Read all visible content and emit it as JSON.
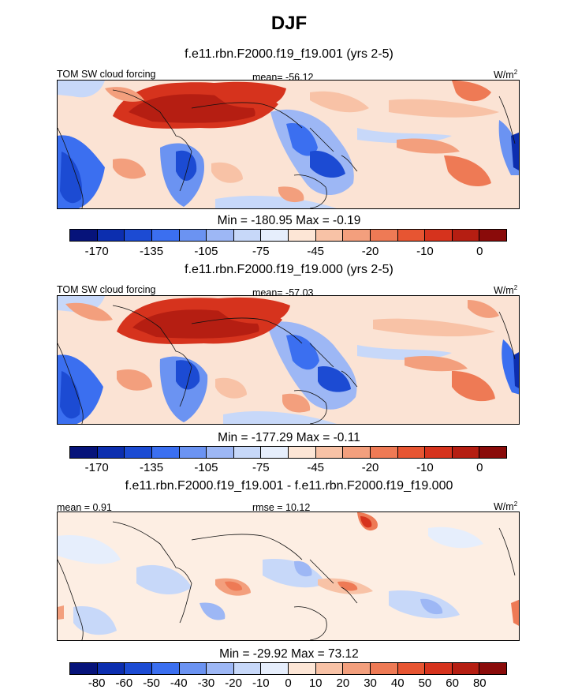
{
  "title": "DJF",
  "panels": [
    {
      "subtitle": "f.e11.rbn.F2000.f19_f19.001 (yrs 2-5)",
      "left_label": "TOM SW cloud forcing",
      "center_label": "mean= -56.12",
      "unit": "W/m",
      "unit_exp": "2",
      "minmax": "Min = -180.95 Max =  -0.19",
      "colorbar": {
        "colors": [
          "#06137a",
          "#0c2eaf",
          "#1c4bd3",
          "#3b6ff0",
          "#6b93f2",
          "#9db7f5",
          "#c7d8f9",
          "#e6eefc",
          "#fde6d6",
          "#f8c2a6",
          "#f39f7d",
          "#ee7a55",
          "#e75532",
          "#d6331d",
          "#b51e12",
          "#8a0b0a"
        ],
        "ticks": [
          "-170",
          "-135",
          "-105",
          "-75",
          "-45",
          "-20",
          "-10",
          "0"
        ]
      }
    },
    {
      "subtitle": "f.e11.rbn.F2000.f19_f19.000 (yrs 2-5)",
      "left_label": "TOM SW cloud forcing",
      "center_label": "mean= -57.03",
      "unit": "W/m",
      "unit_exp": "2",
      "minmax": "Min = -177.29 Max =  -0.11",
      "colorbar": {
        "colors": [
          "#06137a",
          "#0c2eaf",
          "#1c4bd3",
          "#3b6ff0",
          "#6b93f2",
          "#9db7f5",
          "#c7d8f9",
          "#e6eefc",
          "#fde6d6",
          "#f8c2a6",
          "#f39f7d",
          "#ee7a55",
          "#e75532",
          "#d6331d",
          "#b51e12",
          "#8a0b0a"
        ],
        "ticks": [
          "-170",
          "-135",
          "-105",
          "-75",
          "-45",
          "-20",
          "-10",
          "0"
        ]
      }
    },
    {
      "subtitle": "f.e11.rbn.F2000.f19_f19.001 - f.e11.rbn.F2000.f19_f19.000",
      "left_label": "mean =   0.91",
      "center_label": "rmse =  10.12",
      "unit": "W/m",
      "unit_exp": "2",
      "minmax": "Min = -29.92 Max =  73.12",
      "colorbar": {
        "colors": [
          "#06137a",
          "#0c2eaf",
          "#1c4bd3",
          "#3b6ff0",
          "#6b93f2",
          "#9db7f5",
          "#c7d8f9",
          "#e6eefc",
          "#fde6d6",
          "#f8c2a6",
          "#f39f7d",
          "#ee7a55",
          "#e75532",
          "#d6331d",
          "#b51e12",
          "#8a0b0a"
        ],
        "ticks": [
          "-80",
          "-60",
          "-50",
          "-40",
          "-30",
          "-20",
          "-10",
          "0",
          "10",
          "20",
          "30",
          "40",
          "50",
          "60",
          "80"
        ]
      }
    }
  ]
}
